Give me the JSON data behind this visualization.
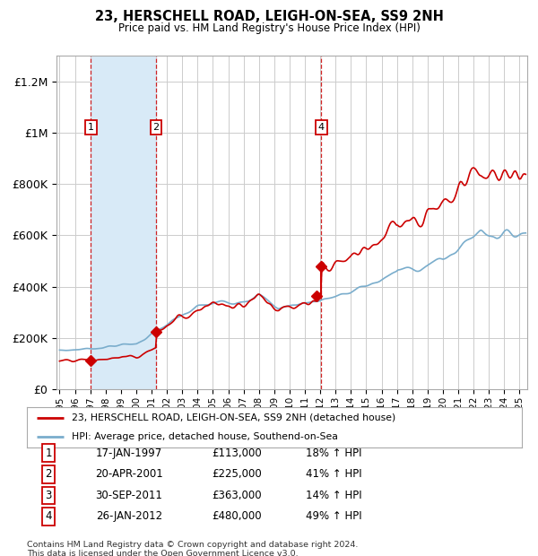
{
  "title": "23, HERSCHELL ROAD, LEIGH-ON-SEA, SS9 2NH",
  "subtitle": "Price paid vs. HM Land Registry's House Price Index (HPI)",
  "ylim": [
    0,
    1300000
  ],
  "xlim_start": 1994.8,
  "xlim_end": 2025.5,
  "yticks": [
    0,
    200000,
    400000,
    600000,
    800000,
    1000000,
    1200000
  ],
  "ytick_labels": [
    "£0",
    "£200K",
    "£400K",
    "£600K",
    "£800K",
    "£1M",
    "£1.2M"
  ],
  "transactions": [
    {
      "num": 1,
      "date_str": "17-JAN-1997",
      "date_x": 1997.04,
      "price": 113000,
      "pct": "18%",
      "dir": "↑"
    },
    {
      "num": 2,
      "date_str": "20-APR-2001",
      "date_x": 2001.3,
      "price": 225000,
      "pct": "41%",
      "dir": "↑"
    },
    {
      "num": 3,
      "date_str": "30-SEP-2011",
      "date_x": 2011.75,
      "price": 363000,
      "pct": "14%",
      "dir": "↑"
    },
    {
      "num": 4,
      "date_str": "26-JAN-2012",
      "date_x": 2012.07,
      "price": 480000,
      "pct": "49%",
      "dir": "↑"
    }
  ],
  "legend_line1": "23, HERSCHELL ROAD, LEIGH-ON-SEA, SS9 2NH (detached house)",
  "legend_line2": "HPI: Average price, detached house, Southend-on-Sea",
  "footnote1": "Contains HM Land Registry data © Crown copyright and database right 2024.",
  "footnote2": "This data is licensed under the Open Government Licence v3.0.",
  "red_color": "#cc0000",
  "blue_color": "#7aadcc",
  "shaded_color": "#d8eaf7",
  "background_color": "#ffffff",
  "grid_color": "#cccccc"
}
